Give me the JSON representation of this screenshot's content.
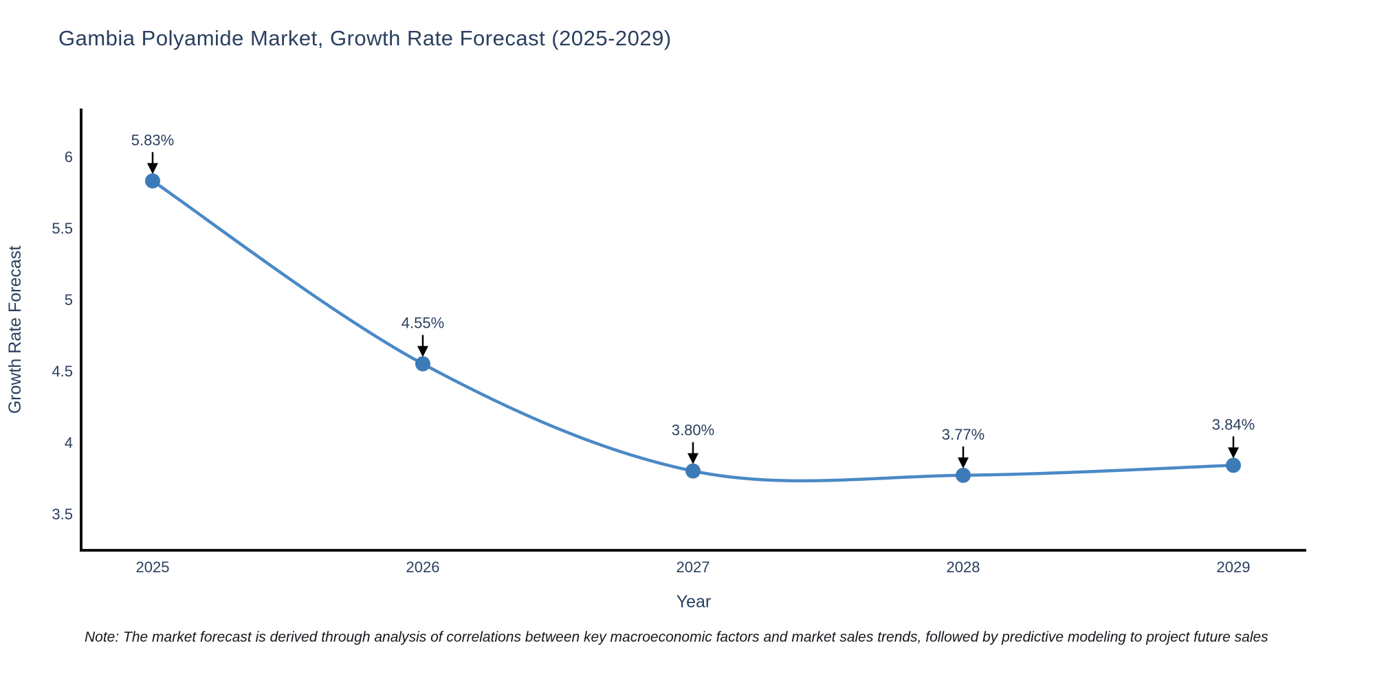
{
  "title": "Gambia Polyamide Market, Growth Rate Forecast (2025-2029)",
  "note": "Note: The market forecast is derived through analysis of correlations between key macroeconomic factors and market sales trends, followed by predictive modeling to project future sales",
  "chart_data": {
    "type": "line",
    "line_shape": "spline",
    "title": "Gambia Polyamide Market, Growth Rate Forecast (2025-2029)",
    "xlabel": "Year",
    "ylabel": "Growth Rate Forecast",
    "x": [
      2025,
      2026,
      2027,
      2028,
      2029
    ],
    "values": [
      5.83,
      4.55,
      3.8,
      3.77,
      3.84
    ],
    "point_labels": [
      "5.83%",
      "4.55%",
      "3.80%",
      "3.77%",
      "3.84%"
    ],
    "x_tick_labels": [
      "2025",
      "2026",
      "2027",
      "2028",
      "2029"
    ],
    "y_ticks": [
      {
        "label": "6",
        "value": 6
      },
      {
        "label": "5.5",
        "value": 5.5
      },
      {
        "label": "5",
        "value": 5
      },
      {
        "label": "4.5",
        "value": 4.5
      },
      {
        "label": "4",
        "value": 4
      },
      {
        "label": "3.5",
        "value": 3.5
      }
    ],
    "xlim": [
      2024.74,
      2029.27
    ],
    "ylim": [
      3.25,
      6.34
    ],
    "grid": false,
    "legend": "none",
    "colors": {
      "line": "#4a89c6",
      "marker": "#3d7ab8",
      "axis": "#0d0d0d",
      "text": "#2a3f5f",
      "annotation_text": "#2a3f5f",
      "annotation_arrow": "#000000",
      "note_text": "#16161d"
    }
  }
}
